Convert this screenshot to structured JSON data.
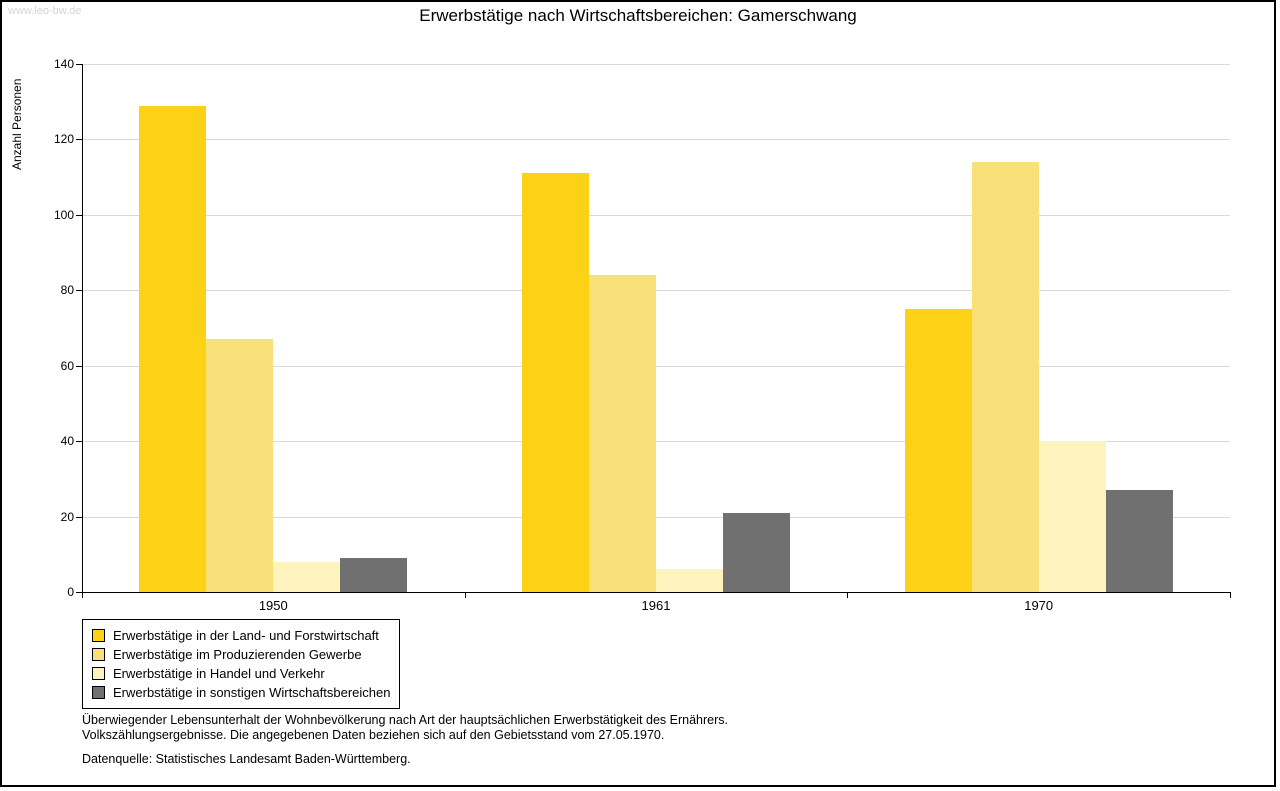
{
  "watermark": "www.leo-bw.de",
  "source": "Datenquelle: Statistisches Landesamt Baden-Württemberg.",
  "footnotes": [
    "Überwiegender Lebensunterhalt der Wohnbevölkerung nach Art der hauptsächlichen Erwerbstätigkeit des Ernährers.",
    "Volkszählungsergebnisse. Die angegebenen Daten beziehen sich auf den Gebietsstand vom 27.05.1970."
  ],
  "chart_data": {
    "type": "bar",
    "title": "Erwerbstätige nach Wirtschaftsbereichen: Gamerschwang",
    "xlabel": "",
    "ylabel": "Anzahl Personen",
    "categories": [
      "1950",
      "1961",
      "1970"
    ],
    "series": [
      {
        "name": "Erwerbstätige in der Land- und Forstwirtschaft",
        "color": "#FCD116",
        "values": [
          129,
          111,
          75
        ]
      },
      {
        "name": "Erwerbstätige im Produzierenden Gewerbe",
        "color": "#FAE078",
        "values": [
          67,
          84,
          114
        ]
      },
      {
        "name": "Erwerbstätige in Handel und Verkehr",
        "color": "#FCF3BE",
        "values": [
          8,
          6,
          40
        ]
      },
      {
        "name": "Erwerbstätige in sonstigen Wirtschaftsbereichen",
        "color": "#707070",
        "values": [
          9,
          21,
          27
        ]
      }
    ],
    "ylim": [
      0,
      140
    ],
    "yticks": [
      0,
      20,
      40,
      60,
      80,
      100,
      120,
      140
    ],
    "grid": true,
    "gridline_color": "#d9d9d9",
    "legend_position": "bottom-left"
  }
}
